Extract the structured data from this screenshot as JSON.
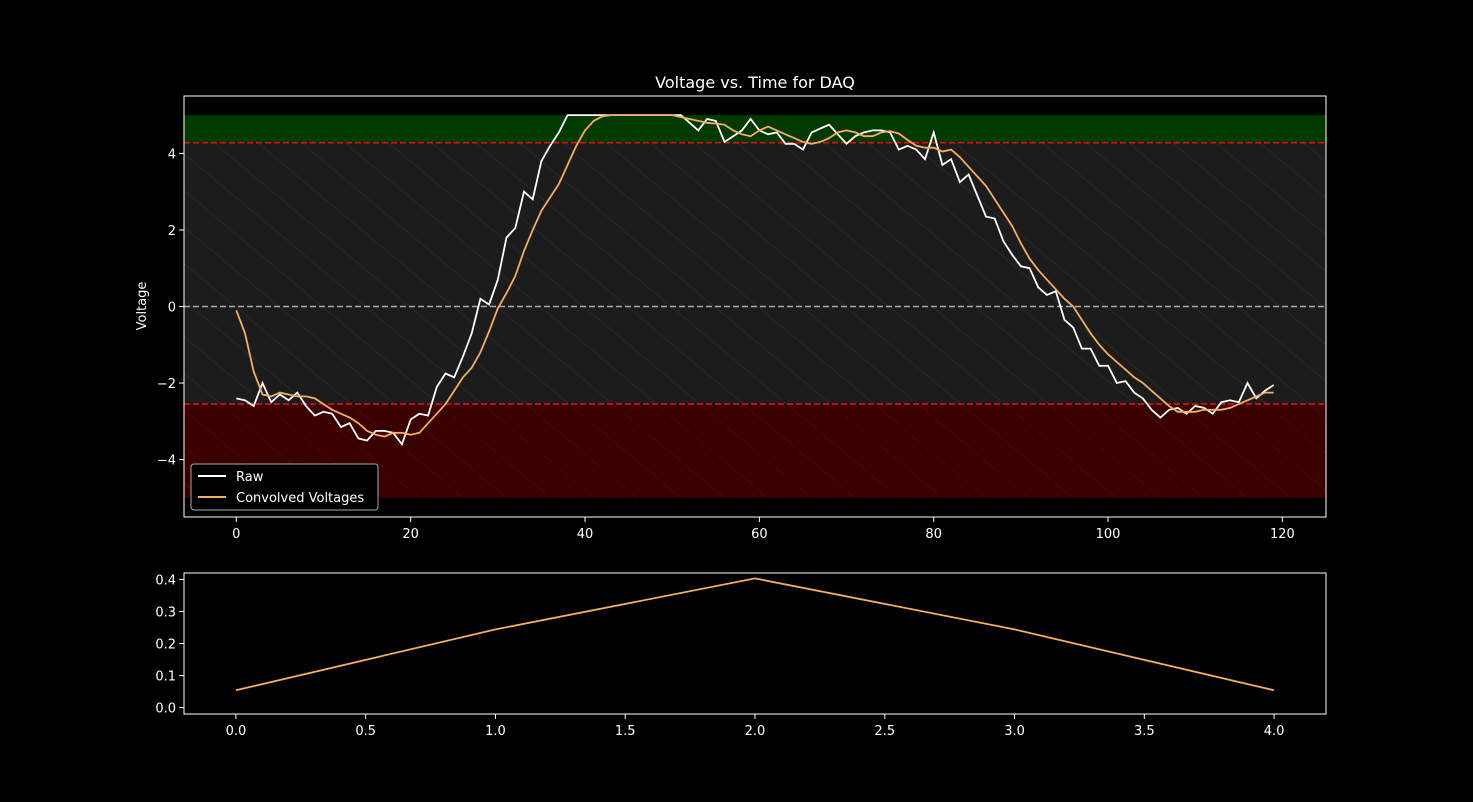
{
  "chart_data": [
    {
      "type": "line",
      "title": "Voltage vs. Time for DAQ",
      "xlabel": "",
      "ylabel": "Voltage",
      "xlim": [
        -6,
        125
      ],
      "ylim": [
        -5.5,
        5.5
      ],
      "xticks": [
        0,
        20,
        40,
        60,
        80,
        100,
        120
      ],
      "yticks": [
        -4,
        -2,
        0,
        2,
        4
      ],
      "grid": false,
      "legend_position": "lower-left",
      "thresholds": {
        "upper": 4.28,
        "lower": -2.55,
        "zero": 0
      },
      "bands": {
        "green": [
          4.28,
          5.0
        ],
        "red": [
          -5.0,
          -2.55
        ],
        "gray": [
          -2.55,
          4.28
        ]
      },
      "colors": {
        "raw": "#ffffff",
        "convolved": "#f5ad5f",
        "threshold": "#e01010",
        "zero": "#aaaaaa",
        "green_band": "#003a00",
        "red_band": "#3a0000",
        "gray_band": "#1c1c1c"
      },
      "series": [
        {
          "name": "Raw",
          "color": "#ffffff",
          "x": [
            0,
            1,
            2,
            3,
            4,
            5,
            6,
            7,
            8,
            9,
            10,
            11,
            12,
            13,
            14,
            15,
            16,
            17,
            18,
            19,
            20,
            21,
            22,
            23,
            24,
            25,
            26,
            27,
            28,
            29,
            30,
            31,
            32,
            33,
            34,
            35,
            36,
            37,
            38,
            39,
            40,
            41,
            42,
            43,
            44,
            45,
            46,
            47,
            48,
            49,
            50,
            51,
            52,
            53,
            54,
            55,
            56,
            57,
            58,
            59,
            60,
            61,
            62,
            63,
            64,
            65,
            66,
            67,
            68,
            69,
            70,
            71,
            72,
            73,
            74,
            75,
            76,
            77,
            78,
            79,
            80,
            81,
            82,
            83,
            84,
            85,
            86,
            87,
            88,
            89,
            90,
            91,
            92,
            93,
            94,
            95,
            96,
            97,
            98,
            99,
            100,
            101,
            102,
            103,
            104,
            105,
            106,
            107,
            108,
            109,
            110,
            111,
            112,
            113,
            114,
            115,
            116,
            117,
            118,
            119
          ],
          "values": [
            -2.4,
            -2.45,
            -2.6,
            -2.0,
            -2.5,
            -2.3,
            -2.45,
            -2.25,
            -2.6,
            -2.85,
            -2.75,
            -2.8,
            -3.15,
            -3.05,
            -3.45,
            -3.5,
            -3.25,
            -3.25,
            -3.3,
            -3.6,
            -2.95,
            -2.8,
            -2.85,
            -2.1,
            -1.75,
            -1.85,
            -1.3,
            -0.7,
            0.2,
            0.05,
            0.7,
            1.8,
            2.05,
            3.0,
            2.8,
            3.8,
            4.2,
            4.55,
            5.0,
            5.0,
            5.0,
            5.0,
            5.0,
            5.0,
            5.0,
            5.0,
            5.0,
            5.0,
            5.0,
            5.0,
            5.0,
            5.0,
            4.8,
            4.6,
            4.9,
            4.85,
            4.3,
            4.45,
            4.6,
            4.9,
            4.6,
            4.5,
            4.55,
            4.25,
            4.25,
            4.1,
            4.55,
            4.65,
            4.75,
            4.5,
            4.25,
            4.45,
            4.55,
            4.6,
            4.6,
            4.55,
            4.1,
            4.2,
            4.1,
            3.85,
            4.55,
            3.7,
            3.85,
            3.25,
            3.45,
            2.9,
            2.35,
            2.3,
            1.7,
            1.35,
            1.05,
            1.0,
            0.5,
            0.3,
            0.4,
            -0.35,
            -0.55,
            -1.1,
            -1.1,
            -1.55,
            -1.55,
            -2.0,
            -1.95,
            -2.25,
            -2.4,
            -2.7,
            -2.9,
            -2.7,
            -2.65,
            -2.8,
            -2.6,
            -2.65,
            -2.8,
            -2.5,
            -2.45,
            -2.5,
            -2.0,
            -2.4,
            -2.2,
            -2.05
          ]
        },
        {
          "name": "Convolved Voltages",
          "color": "#f5ad5f",
          "x": [
            0,
            1,
            2,
            3,
            4,
            5,
            6,
            7,
            8,
            9,
            10,
            11,
            12,
            13,
            14,
            15,
            16,
            17,
            18,
            19,
            20,
            21,
            22,
            23,
            24,
            25,
            26,
            27,
            28,
            29,
            30,
            31,
            32,
            33,
            34,
            35,
            36,
            37,
            38,
            39,
            40,
            41,
            42,
            43,
            44,
            45,
            46,
            47,
            48,
            49,
            50,
            51,
            52,
            53,
            54,
            55,
            56,
            57,
            58,
            59,
            60,
            61,
            62,
            63,
            64,
            65,
            66,
            67,
            68,
            69,
            70,
            71,
            72,
            73,
            74,
            75,
            76,
            77,
            78,
            79,
            80,
            81,
            82,
            83,
            84,
            85,
            86,
            87,
            88,
            89,
            90,
            91,
            92,
            93,
            94,
            95,
            96,
            97,
            98,
            99,
            100,
            101,
            102,
            103,
            104,
            105,
            106,
            107,
            108,
            109,
            110,
            111,
            112,
            113,
            114,
            115,
            116,
            117,
            118,
            119
          ],
          "values": [
            -0.1,
            -0.7,
            -1.7,
            -2.3,
            -2.35,
            -2.25,
            -2.3,
            -2.35,
            -2.35,
            -2.4,
            -2.55,
            -2.7,
            -2.8,
            -2.9,
            -3.05,
            -3.25,
            -3.35,
            -3.4,
            -3.3,
            -3.3,
            -3.35,
            -3.3,
            -3.05,
            -2.8,
            -2.55,
            -2.2,
            -1.85,
            -1.6,
            -1.2,
            -0.65,
            -0.05,
            0.35,
            0.8,
            1.45,
            2.0,
            2.5,
            2.85,
            3.2,
            3.7,
            4.2,
            4.6,
            4.85,
            4.97,
            5.0,
            5.0,
            5.0,
            5.0,
            5.0,
            5.0,
            5.0,
            5.0,
            4.95,
            4.9,
            4.85,
            4.8,
            4.78,
            4.75,
            4.6,
            4.5,
            4.45,
            4.6,
            4.7,
            4.6,
            4.5,
            4.4,
            4.3,
            4.25,
            4.3,
            4.4,
            4.55,
            4.6,
            4.55,
            4.45,
            4.45,
            4.55,
            4.58,
            4.52,
            4.35,
            4.2,
            4.15,
            4.15,
            4.05,
            4.1,
            3.9,
            3.65,
            3.4,
            3.15,
            2.8,
            2.45,
            2.1,
            1.65,
            1.25,
            0.95,
            0.7,
            0.45,
            0.2,
            0.0,
            -0.35,
            -0.7,
            -1.0,
            -1.25,
            -1.45,
            -1.65,
            -1.85,
            -2.0,
            -2.2,
            -2.4,
            -2.6,
            -2.75,
            -2.75,
            -2.75,
            -2.7,
            -2.7,
            -2.7,
            -2.65,
            -2.55,
            -2.45,
            -2.35,
            -2.25,
            -2.25
          ]
        }
      ]
    },
    {
      "type": "line",
      "title": "",
      "xlabel": "",
      "ylabel": "",
      "xlim": [
        -0.2,
        4.2
      ],
      "ylim": [
        -0.02,
        0.42
      ],
      "xticks": [
        0.0,
        0.5,
        1.0,
        1.5,
        2.0,
        2.5,
        3.0,
        3.5,
        4.0
      ],
      "yticks": [
        0.0,
        0.1,
        0.2,
        0.3,
        0.4
      ],
      "grid": false,
      "series": [
        {
          "color": "#f5ad5f",
          "x": [
            0,
            1,
            2,
            3,
            4
          ],
          "values": [
            0.054,
            0.244,
            0.403,
            0.244,
            0.054
          ]
        }
      ]
    }
  ]
}
